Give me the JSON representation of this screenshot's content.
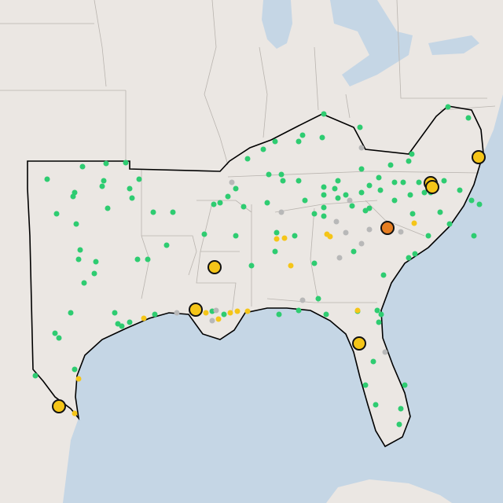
{
  "map": {
    "marker_colors": {
      "green": "#2ecc71",
      "yellow": "#f5c518",
      "orange": "#e67e22",
      "gray": "#b8b8b8"
    },
    "major_marker_outline": "#111111"
  }
}
